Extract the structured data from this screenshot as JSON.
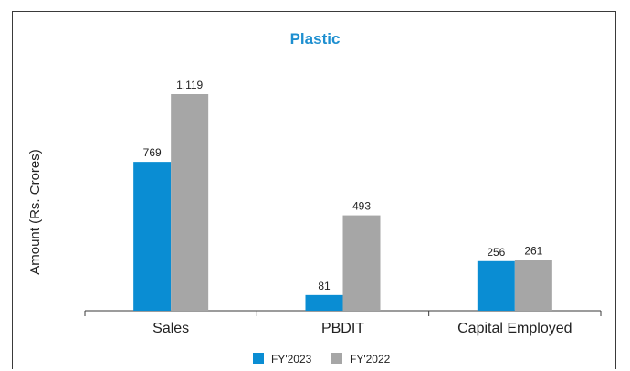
{
  "chart_data": {
    "type": "bar",
    "title": "Plastic",
    "xlabel": "",
    "ylabel": "Amount (Rs. Crores)",
    "categories": [
      "Sales",
      "PBDIT",
      "Capital Employed"
    ],
    "series": [
      {
        "name": "FY'2023",
        "color": "#0a8dd3",
        "values": [
          769,
          81,
          256
        ],
        "labels": [
          "769",
          "81",
          "256"
        ]
      },
      {
        "name": "FY'2022",
        "color": "#a6a6a6",
        "values": [
          1119,
          493,
          261
        ],
        "labels": [
          "1,119",
          "493",
          "261"
        ]
      }
    ],
    "ylim": [
      0,
      1119
    ],
    "grid": false,
    "legend": "bottom-center",
    "colors": {
      "title": "#1e8fd0",
      "axis": "#3a3a3a",
      "text": "#222222"
    }
  }
}
